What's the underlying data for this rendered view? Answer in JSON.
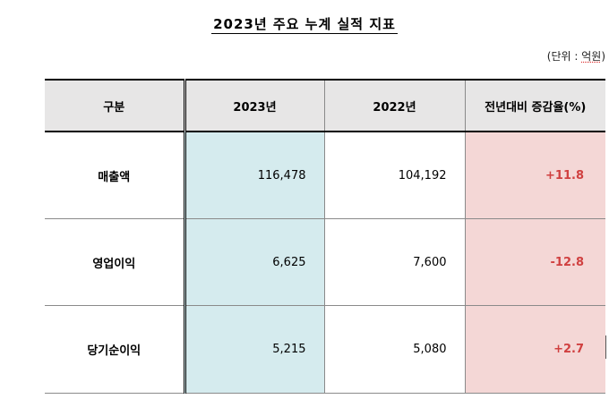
{
  "title": "2023년 주요 누계 실적 지표",
  "unit": {
    "prefix": "(단위 : ",
    "value": "억원",
    "suffix": ")"
  },
  "table": {
    "headers": [
      "구분",
      "2023년",
      "2022년",
      "전년대비 증감율(%)"
    ],
    "rows": [
      {
        "label": "매출액",
        "y2023": "116,478",
        "y2022": "104,192",
        "change": "+11.8"
      },
      {
        "label": "영업이익",
        "y2023": "6,625",
        "y2022": "7,600",
        "change": "-12.8"
      },
      {
        "label": "당기순이익",
        "y2023": "5,215",
        "y2022": "5,080",
        "change": "+2.7"
      }
    ]
  },
  "colors": {
    "header_bg": "#e7e6e6",
    "col2023_bg": "#d5ebee",
    "change_bg": "#f4d7d6",
    "change_text": "#d04040"
  }
}
